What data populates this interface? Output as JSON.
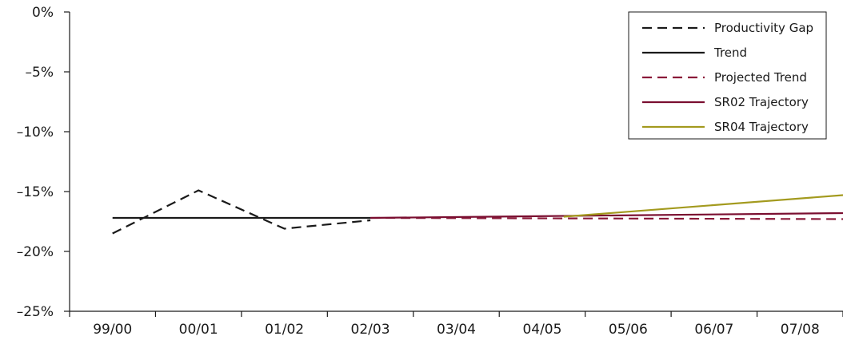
{
  "chart_data": {
    "type": "line",
    "title": "",
    "xlabel": "",
    "ylabel": "",
    "categories": [
      "99/00",
      "00/01",
      "01/02",
      "02/03",
      "03/04",
      "04/05",
      "05/06",
      "06/07",
      "07/08"
    ],
    "ylim": [
      -25,
      0
    ],
    "yticks": [
      0,
      -5,
      -10,
      -15,
      -20,
      -25
    ],
    "ytick_labels": [
      "0%",
      "–5%",
      "–10%",
      "–15%",
      "–20%",
      "–25%"
    ],
    "grid": false,
    "legend_position": "top-right",
    "series": [
      {
        "name": "Productivity Gap",
        "color": "#1a1a1a",
        "dash": true,
        "x": [
          0,
          1,
          2,
          3
        ],
        "values": [
          -18.5,
          -14.9,
          -18.1,
          -17.4
        ]
      },
      {
        "name": "Trend",
        "color": "#1a1a1a",
        "dash": false,
        "x": [
          0,
          3
        ],
        "values": [
          -17.2,
          -17.2
        ]
      },
      {
        "name": "Projected Trend",
        "color": "#8b1a3a",
        "dash": true,
        "x": [
          3,
          8.5
        ],
        "values": [
          -17.2,
          -17.3
        ]
      },
      {
        "name": "SR02 Trajectory",
        "color": "#7a0e30",
        "dash": false,
        "x": [
          3,
          8.5
        ],
        "values": [
          -17.2,
          -16.8
        ]
      },
      {
        "name": "SR04 Trajectory",
        "color": "#a39a1e",
        "dash": false,
        "x": [
          5.25,
          8.5
        ],
        "values": [
          -17.1,
          -15.3
        ]
      }
    ]
  }
}
